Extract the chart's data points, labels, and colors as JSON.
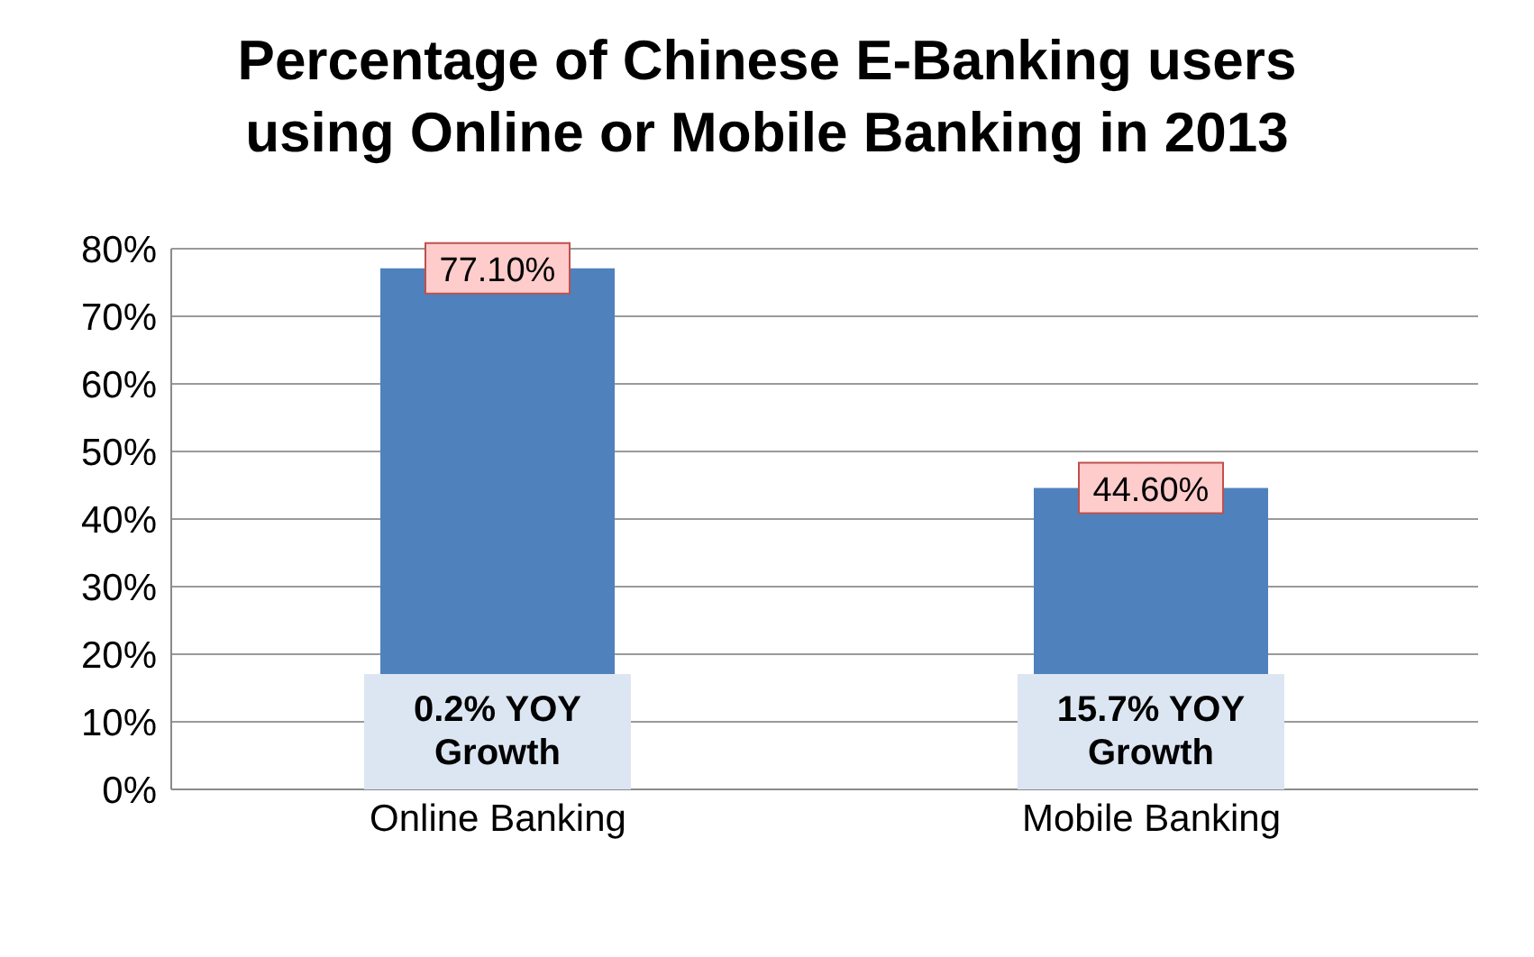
{
  "chart_data": {
    "type": "bar",
    "title": "Percentage of Chinese E-Banking users using Online or Mobile Banking in 2013",
    "categories": [
      "Online Banking",
      "Mobile Banking"
    ],
    "values": [
      77.1,
      44.6
    ],
    "color": "#4f81bd",
    "value_labels": [
      "77.10%",
      "44.60%"
    ],
    "ylim": [
      0,
      80
    ],
    "yticks": [
      {
        "value": 0,
        "label": "0%"
      },
      {
        "value": 10,
        "label": "10%"
      },
      {
        "value": 20,
        "label": "20%"
      },
      {
        "value": 30,
        "label": "30%"
      },
      {
        "value": 40,
        "label": "40%"
      },
      {
        "value": 50,
        "label": "50%"
      },
      {
        "value": 60,
        "label": "60%"
      },
      {
        "value": 70,
        "label": "70%"
      },
      {
        "value": 80,
        "label": "80%"
      }
    ],
    "grid": "y",
    "annotations": [
      "0.2% YOY Growth",
      "15.7% YOY Growth"
    ]
  }
}
